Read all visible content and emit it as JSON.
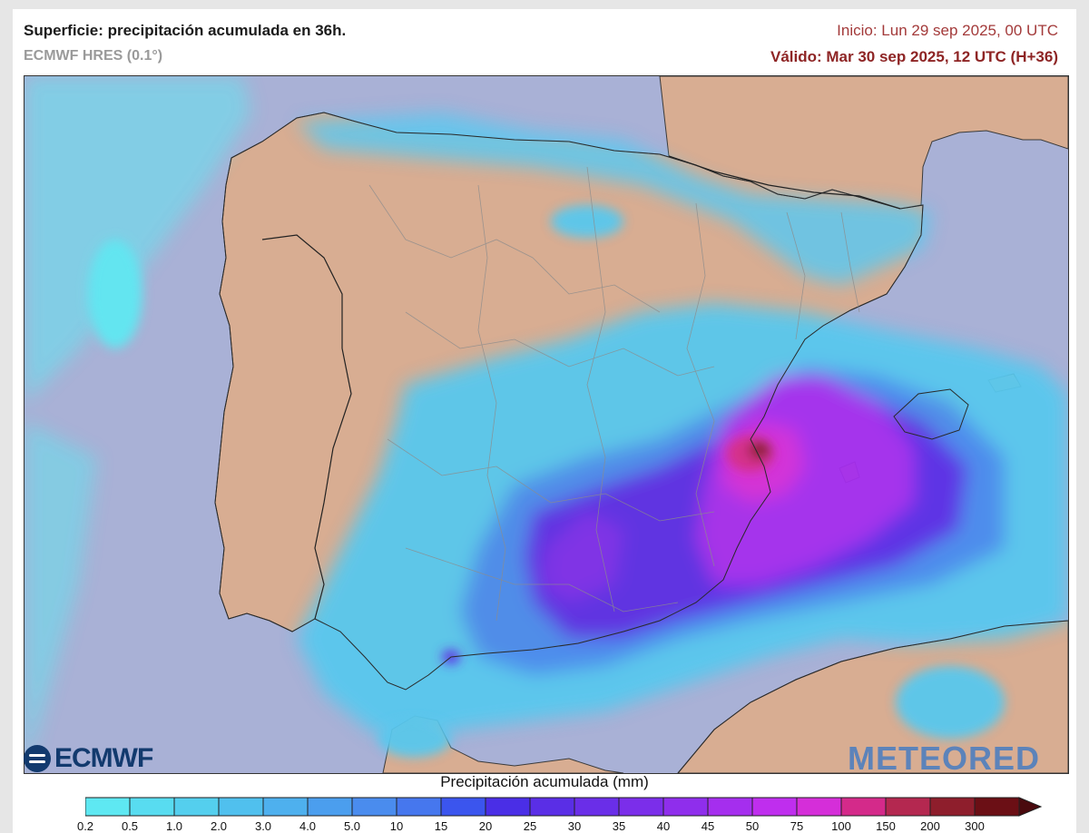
{
  "header": {
    "title": "Superficie: precipitación acumulada en 36h.",
    "model": "ECMWF HRES (0.1°)",
    "init": "Inicio: Lun 29 sep 2025, 00 UTC",
    "valid": "Válido: Mar 30 sep 2025, 12 UTC (H+36)"
  },
  "logos": {
    "left": "ECMWF",
    "right": "METEORED"
  },
  "legend": {
    "title": "Precipitación acumulada (mm)",
    "ticks": [
      "0.2",
      "0.5",
      "1.0",
      "2.0",
      "3.0",
      "4.0",
      "5.0",
      "10",
      "15",
      "20",
      "25",
      "30",
      "35",
      "40",
      "45",
      "50",
      "75",
      "100",
      "150",
      "200",
      "300"
    ],
    "colors": [
      "#5ee8f2",
      "#58dcf0",
      "#54cfee",
      "#50c0ee",
      "#4eb0ee",
      "#4b9eee",
      "#4a8cee",
      "#4677ee",
      "#3b55ee",
      "#4a2ee6",
      "#5a2ee6",
      "#6a2ee8",
      "#7b2eea",
      "#8f2eec",
      "#a52eee",
      "#bf2eee",
      "#d52ed9",
      "#d42a8a",
      "#b42850",
      "#8e1e2c",
      "#6b0f15"
    ],
    "arrow_color": "#4a0a0e"
  },
  "map": {
    "ocean_color": "#a9b1d6",
    "land_color": "#d8ad92",
    "border_color": "#2a2a2a"
  }
}
